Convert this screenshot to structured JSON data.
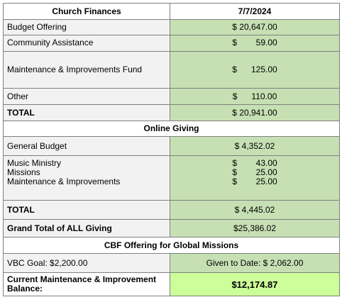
{
  "header": {
    "title": "Church Finances",
    "date": "7/7/2024"
  },
  "church_finances": [
    {
      "label": "Budget Offering",
      "amount": "$ 20,647.00"
    },
    {
      "label": "Community Assistance",
      "amount": "$        59.00"
    },
    {
      "label": "Maintenance & Improvements Fund",
      "amount": "$      125.00"
    },
    {
      "label": "Other",
      "amount": "$      110.00"
    }
  ],
  "church_total": {
    "label": "TOTAL",
    "amount": "$ 20,941.00"
  },
  "online_giving": {
    "title": "Online Giving",
    "general": {
      "label": "General Budget",
      "amount": "$ 4,352.02"
    },
    "group": [
      {
        "label": "Music Ministry",
        "amount": "$        43.00"
      },
      {
        "label": "Missions",
        "amount": "$        25.00"
      },
      {
        "label": "Maintenance & Improvements",
        "amount": "$        25.00"
      }
    ],
    "total": {
      "label": "TOTAL",
      "amount": "$ 4,445.02"
    }
  },
  "grand_total": {
    "label": "Grand Total of ALL Giving",
    "amount": "$25,386.02"
  },
  "cbf": {
    "title": "CBF Offering for Global Missions",
    "goal": "VBC Goal: $2,200.00",
    "given": "Given to Date: $ 2,062.00"
  },
  "balance": {
    "label": "Current Maintenance & Improvement Balance:",
    "amount": "$12,174.87"
  },
  "colors": {
    "gray": "#f2f2f2",
    "green": "#c6e0b4",
    "lime": "#ccff99"
  }
}
